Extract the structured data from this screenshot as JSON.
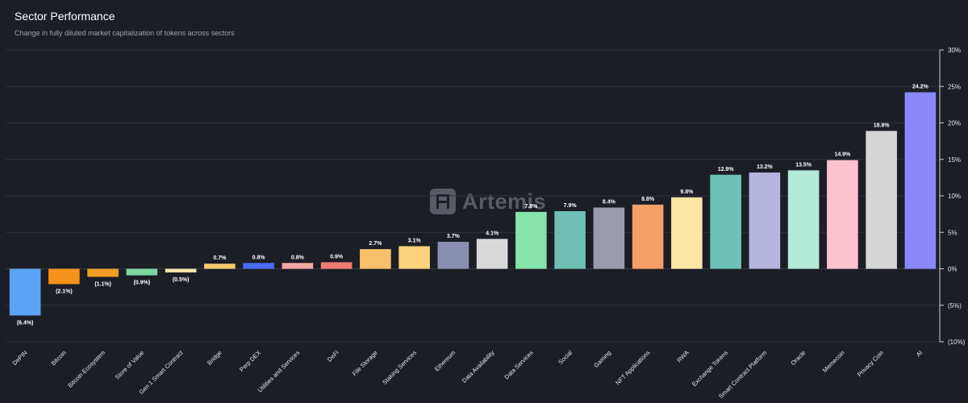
{
  "header": {
    "title": "Sector Performance",
    "subtitle": "Change in fully diluted market capitalization of tokens across sectors"
  },
  "watermark": {
    "text": "Artemis",
    "icon": "artemis-logo-icon"
  },
  "chart_data": {
    "type": "bar",
    "title": "Sector Performance",
    "subtitle": "Change in fully diluted market capitalization of tokens across sectors",
    "xlabel": "",
    "ylabel": "",
    "ylim": [
      -10,
      30
    ],
    "yticks": [
      30,
      25,
      20,
      15,
      10,
      5,
      0,
      -5,
      -10
    ],
    "ytick_labels": [
      "30%",
      "25%",
      "20%",
      "15%",
      "10%",
      "5%",
      "0%",
      "(5%)",
      "(10%)"
    ],
    "grid": true,
    "categories": [
      "DePIN",
      "Bitcoin",
      "Bitcoin Ecosystem",
      "Store of Value",
      "Gen 1 Smart Contract",
      "Bridge",
      "Perp DEX",
      "Utilities and Services",
      "DeFi",
      "File Storage",
      "Staking Services",
      "Ethereum",
      "Data Availability",
      "Data Services",
      "Social",
      "Gaming",
      "NFT Applications",
      "RWA",
      "Exchange Tokens",
      "Smart Contract Platform",
      "Oracle",
      "Memecoin",
      "Privacy Coin",
      "AI"
    ],
    "values": [
      -6.4,
      -2.1,
      -1.1,
      -0.9,
      -0.5,
      0.7,
      0.8,
      0.8,
      0.9,
      2.7,
      3.1,
      3.7,
      4.1,
      7.8,
      7.9,
      8.4,
      8.8,
      9.8,
      12.9,
      13.2,
      13.5,
      14.9,
      18.9,
      24.2
    ],
    "labels": [
      "(6.4%)",
      "(2.1%)",
      "(1.1%)",
      "(0.9%)",
      "(0.5%)",
      "0.7%",
      "0.8%",
      "0.8%",
      "0.9%",
      "2.7%",
      "3.1%",
      "3.7%",
      "4.1%",
      "7.8%",
      "7.9%",
      "8.4%",
      "8.8%",
      "9.8%",
      "12.9%",
      "13.2%",
      "13.5%",
      "14.9%",
      "18.9%",
      "24.2%"
    ],
    "colors": [
      "#5ba4f5",
      "#f7931a",
      "#f39c26",
      "#7ed6a0",
      "#f9e4a8",
      "#f5c96b",
      "#4a6cf0",
      "#f4a7a0",
      "#ef7c72",
      "#f7c06a",
      "#fcd27a",
      "#8a8fb0",
      "#d9d9d9",
      "#86e3a9",
      "#6fbfb5",
      "#9a9cae",
      "#f5a066",
      "#fde5a5",
      "#6ec1b6",
      "#b6b5de",
      "#b4ead8",
      "#fcc2cf",
      "#d6d6d6",
      "#8a87fa"
    ]
  }
}
